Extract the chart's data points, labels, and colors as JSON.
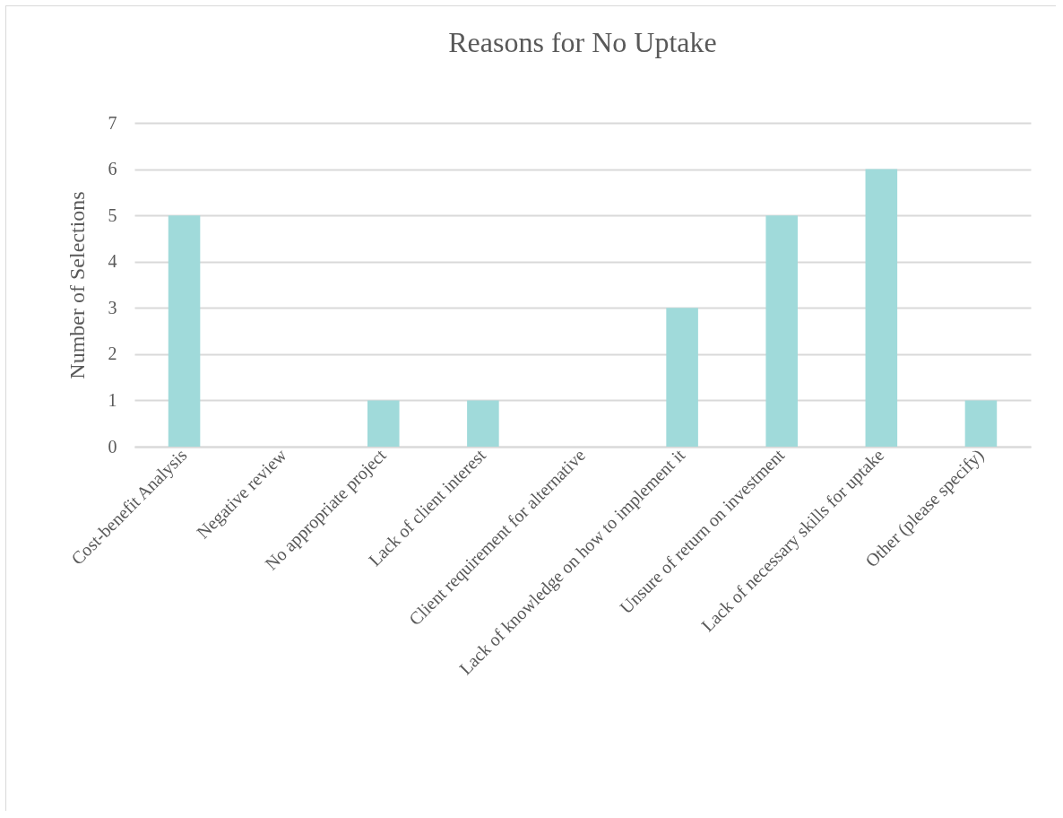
{
  "chart_data": {
    "type": "bar",
    "title": "Reasons for No Uptake",
    "ylabel": "Number of Selections",
    "categories": [
      "Cost-benefit Analysis",
      "Negative review",
      "No appropriate project",
      "Lack of client interest",
      "Client requirement for alternative",
      "Lack of knowledge on how to implement it",
      "Unsure of return on investment",
      "Lack of necessary skills for uptake",
      "Other (please specify)"
    ],
    "values": [
      5,
      0,
      1,
      1,
      0,
      3,
      5,
      6,
      1
    ],
    "color": "#a0dada",
    "ylim": [
      0,
      7
    ],
    "yticks": [
      0,
      1,
      2,
      3,
      4,
      5,
      6,
      7
    ],
    "grid": "y"
  }
}
